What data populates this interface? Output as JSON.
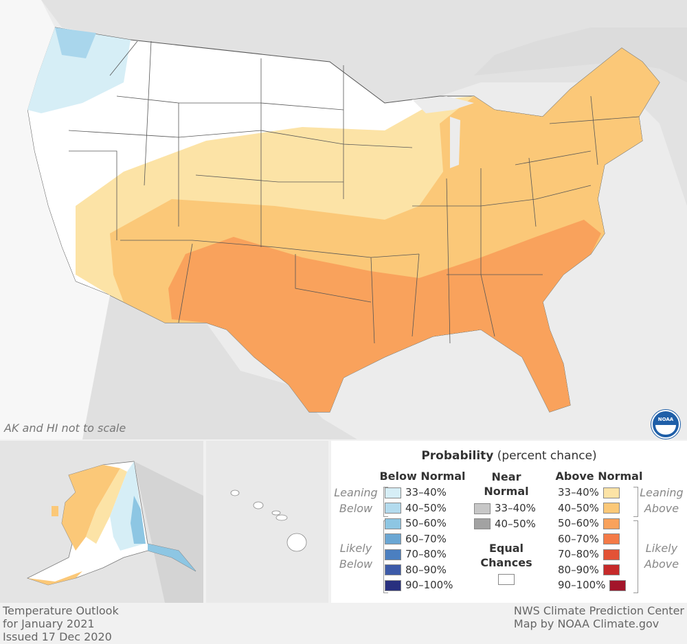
{
  "map": {
    "scale_note": "AK and HI not to scale",
    "logo_text": "NOAA"
  },
  "legend": {
    "title_bold": "Probability",
    "title_rest": " (percent chance)",
    "below_header": "Below Normal",
    "near_header_1": "Near",
    "near_header_2": "Normal",
    "above_header": "Above Normal",
    "leaning_below_1": "Leaning",
    "leaning_below_2": "Below",
    "likely_below_1": "Likely",
    "likely_below_2": "Below",
    "leaning_above_1": "Leaning",
    "leaning_above_2": "Above",
    "likely_above_1": "Likely",
    "likely_above_2": "Above",
    "equal_1": "Equal",
    "equal_2": "Chances",
    "below": [
      {
        "label": "33–40%",
        "color": "#d6eef6"
      },
      {
        "label": "40–50%",
        "color": "#b3dbee"
      },
      {
        "label": "50–60%",
        "color": "#8dc6e3"
      },
      {
        "label": "60–70%",
        "color": "#6aa6d3"
      },
      {
        "label": "70–80%",
        "color": "#4b7fc0"
      },
      {
        "label": "80–90%",
        "color": "#3c5aa8"
      },
      {
        "label": "90–100%",
        "color": "#28307f"
      }
    ],
    "near": [
      {
        "label": "33–40%",
        "color": "#c7c7c7"
      },
      {
        "label": "40–50%",
        "color": "#a2a2a2"
      }
    ],
    "above": [
      {
        "label": "33–40%",
        "color": "#fce3a6"
      },
      {
        "label": "40–50%",
        "color": "#fbc878"
      },
      {
        "label": "50–60%",
        "color": "#f9a25c"
      },
      {
        "label": "60–70%",
        "color": "#f47a47"
      },
      {
        "label": "70–80%",
        "color": "#e35236"
      },
      {
        "label": "80–90%",
        "color": "#c62a2a"
      },
      {
        "label": "90–100%",
        "color": "#a3152a"
      }
    ],
    "equal_color": "#ffffff"
  },
  "footer": {
    "left_1": "Temperature Outlook",
    "left_2": "for January 2021",
    "left_3": "Issued 17 Dec 2020",
    "right_1": "NWS Climate Prediction Center",
    "right_2": "Map by NOAA Climate.gov"
  }
}
